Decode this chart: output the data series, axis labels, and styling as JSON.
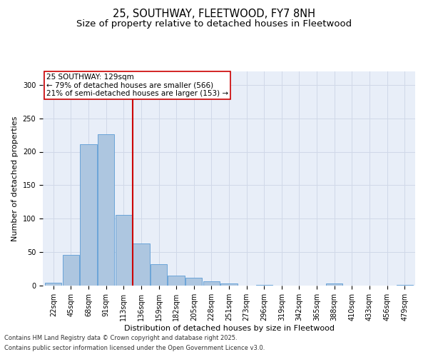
{
  "title_line1": "25, SOUTHWAY, FLEETWOOD, FY7 8NH",
  "title_line2": "Size of property relative to detached houses in Fleetwood",
  "xlabel": "Distribution of detached houses by size in Fleetwood",
  "ylabel": "Number of detached properties",
  "categories": [
    "22sqm",
    "45sqm",
    "68sqm",
    "91sqm",
    "113sqm",
    "136sqm",
    "159sqm",
    "182sqm",
    "205sqm",
    "228sqm",
    "251sqm",
    "273sqm",
    "296sqm",
    "319sqm",
    "342sqm",
    "365sqm",
    "388sqm",
    "410sqm",
    "433sqm",
    "456sqm",
    "479sqm"
  ],
  "values": [
    4,
    46,
    211,
    226,
    106,
    63,
    32,
    15,
    12,
    6,
    3,
    0,
    1,
    0,
    0,
    0,
    3,
    0,
    0,
    0,
    1
  ],
  "bar_color": "#adc6e0",
  "bar_edge_color": "#5b9bd5",
  "grid_color": "#d0d8e8",
  "background_color": "#e8eef8",
  "vline_color": "#cc0000",
  "vline_x_index": 4.5,
  "annotation_text": "25 SOUTHWAY: 129sqm\n← 79% of detached houses are smaller (566)\n21% of semi-detached houses are larger (153) →",
  "annotation_box_color": "#ffffff",
  "annotation_box_edge": "#cc0000",
  "footer_line1": "Contains HM Land Registry data © Crown copyright and database right 2025.",
  "footer_line2": "Contains public sector information licensed under the Open Government Licence v3.0.",
  "ylim": [
    0,
    320
  ],
  "yticks": [
    0,
    50,
    100,
    150,
    200,
    250,
    300
  ],
  "title_fontsize": 10.5,
  "subtitle_fontsize": 9.5,
  "axis_label_fontsize": 8,
  "tick_fontsize": 7,
  "footer_fontsize": 6,
  "annotation_fontsize": 7.5
}
